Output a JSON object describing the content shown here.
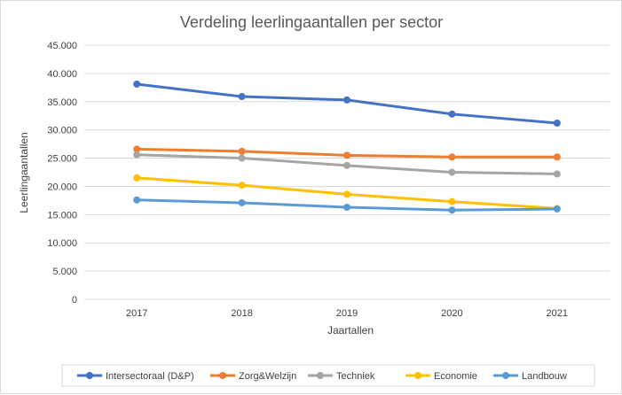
{
  "chart_data": {
    "type": "line",
    "title": "Verdeling leerlingaantallen per sector",
    "xlabel": "Jaartallen",
    "ylabel": "Leerlingaantallen",
    "categories": [
      "2017",
      "2018",
      "2019",
      "2020",
      "2021"
    ],
    "ylim": [
      0,
      45000
    ],
    "ytick_labels": [
      "0",
      "5.000",
      "10.000",
      "15.000",
      "20.000",
      "25.000",
      "30.000",
      "35.000",
      "40.000",
      "45.000"
    ],
    "grid": true,
    "legend_position": "bottom",
    "series": [
      {
        "name": "Intersectoraal (D&P)",
        "color": "#4472c4",
        "values": [
          38100,
          35900,
          35300,
          32800,
          31200
        ]
      },
      {
        "name": "Zorg&Welzijn",
        "color": "#ed7d31",
        "values": [
          26600,
          26200,
          25500,
          25200,
          25200
        ]
      },
      {
        "name": "Techniek",
        "color": "#a5a5a5",
        "values": [
          25600,
          25000,
          23700,
          22500,
          22200
        ]
      },
      {
        "name": "Economie",
        "color": "#ffc000",
        "values": [
          21500,
          20200,
          18600,
          17300,
          16100
        ]
      },
      {
        "name": "Landbouw",
        "color": "#5b9bd5",
        "values": [
          17600,
          17100,
          16300,
          15800,
          16000
        ]
      }
    ]
  }
}
